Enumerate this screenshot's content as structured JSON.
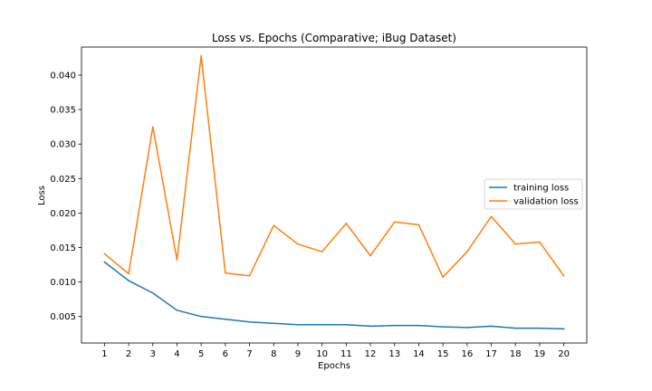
{
  "chart_data": {
    "type": "line",
    "title": "Loss vs. Epochs (Comparative; iBug Dataset)",
    "xlabel": "Epochs",
    "ylabel": "Loss",
    "x": [
      1,
      2,
      3,
      4,
      5,
      6,
      7,
      8,
      9,
      10,
      11,
      12,
      13,
      14,
      15,
      16,
      17,
      18,
      19,
      20
    ],
    "xticks": [
      "1",
      "2",
      "3",
      "4",
      "5",
      "6",
      "7",
      "8",
      "9",
      "10",
      "11",
      "12",
      "13",
      "14",
      "15",
      "16",
      "17",
      "18",
      "19",
      "20"
    ],
    "yticks": [
      "0.005",
      "0.010",
      "0.015",
      "0.020",
      "0.025",
      "0.030",
      "0.035",
      "0.040"
    ],
    "ytick_values": [
      0.005,
      0.01,
      0.015,
      0.02,
      0.025,
      0.03,
      0.035,
      0.04
    ],
    "xlim": [
      0.05,
      20.95
    ],
    "ylim": [
      0.00115,
      0.04407
    ],
    "grid": false,
    "legend_position": "center-right",
    "series": [
      {
        "name": "training loss",
        "color": "#1f77b4",
        "values": [
          0.0129,
          0.0102,
          0.0084,
          0.0059,
          0.005,
          0.0046,
          0.0042,
          0.004,
          0.0038,
          0.0038,
          0.0038,
          0.0036,
          0.0037,
          0.0037,
          0.0035,
          0.0034,
          0.0036,
          0.0033,
          0.0033,
          0.0032
        ]
      },
      {
        "name": "validation loss",
        "color": "#ff7f0e",
        "values": [
          0.0141,
          0.0112,
          0.0325,
          0.0132,
          0.0428,
          0.0113,
          0.0109,
          0.0182,
          0.0155,
          0.0144,
          0.0185,
          0.0138,
          0.0187,
          0.0183,
          0.0107,
          0.0144,
          0.0195,
          0.0155,
          0.0158,
          0.0109
        ]
      }
    ]
  }
}
